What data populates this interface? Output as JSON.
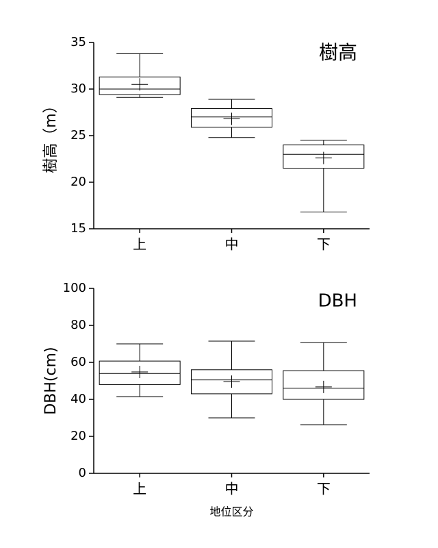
{
  "chart_data": [
    {
      "type": "box",
      "title": "樹高",
      "ylabel": "樹高（m）",
      "categories": [
        "上",
        "中",
        "下"
      ],
      "max": [
        33.8,
        28.9,
        24.5
      ],
      "q3": [
        31.3,
        27.9,
        24.0
      ],
      "median": [
        30.0,
        27.0,
        23.0
      ],
      "q1": [
        29.4,
        25.9,
        21.5
      ],
      "min": [
        29.1,
        24.8,
        16.8
      ],
      "mean": [
        30.5,
        26.8,
        22.6
      ],
      "ylim": [
        15,
        35
      ],
      "yticks": [
        15,
        20,
        25,
        30,
        35
      ],
      "color": "#000000"
    },
    {
      "type": "box",
      "title": "DBH",
      "ylabel": "DBH(cm)",
      "xlabel": "地位区分",
      "categories": [
        "上",
        "中",
        "下"
      ],
      "max": [
        70,
        71.5,
        70.7
      ],
      "q3": [
        60.7,
        56,
        55.5
      ],
      "median": [
        54,
        50.5,
        46
      ],
      "q1": [
        48,
        43,
        40
      ],
      "min": [
        41.5,
        30,
        26.3
      ],
      "mean": [
        54.8,
        49.6,
        46.7
      ],
      "ylim": [
        0,
        100
      ],
      "yticks": [
        0,
        20,
        40,
        60,
        80,
        100
      ],
      "color": "#000000"
    }
  ]
}
